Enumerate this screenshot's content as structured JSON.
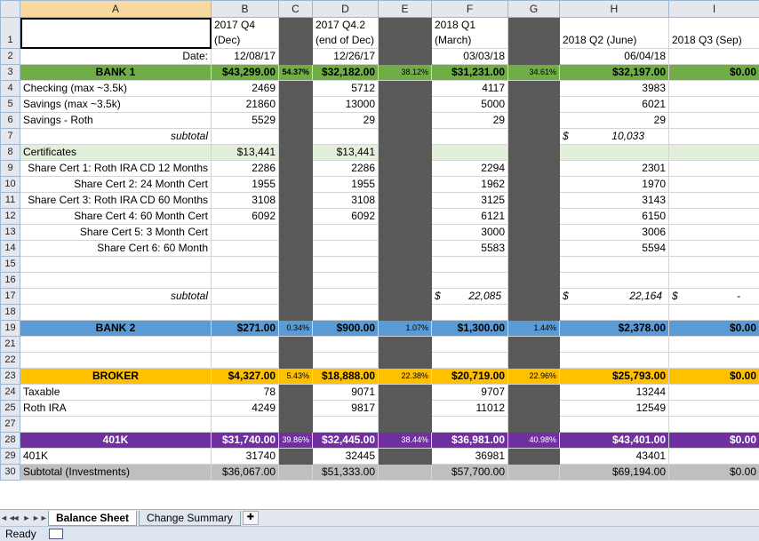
{
  "columns": [
    "A",
    "B",
    "C",
    "D",
    "E",
    "F",
    "G",
    "H",
    "I"
  ],
  "header_row": {
    "b": [
      "2017 Q4",
      "(Dec)"
    ],
    "d": [
      "2017 Q4.2",
      "(end of Dec)"
    ],
    "f": [
      "2018 Q1",
      "(March)"
    ],
    "h": [
      "",
      "2018 Q2 (June)"
    ],
    "i": [
      "",
      "2018 Q3 (Sep)"
    ]
  },
  "rows": {
    "r2": {
      "a": "Date:",
      "b": "12/08/17",
      "d": "12/26/17",
      "f": "03/03/18",
      "h": "06/04/18"
    },
    "r3": {
      "a": "BANK 1",
      "b": "$43,299.00",
      "c": "54.37%",
      "d": "$32,182.00",
      "e": "38.12%",
      "f": "$31,231.00",
      "g": "34.61%",
      "h": "$32,197.00",
      "i": "$0.00"
    },
    "r4": {
      "a": "Checking (max ~3.5k)",
      "b": "2469",
      "d": "5712",
      "f": "4117",
      "h": "3983"
    },
    "r5": {
      "a": "Savings (max ~3.5k)",
      "b": "21860",
      "d": "13000",
      "f": "5000",
      "h": "6021"
    },
    "r6": {
      "a": "Savings - Roth",
      "b": "5529",
      "d": "29",
      "f": "29",
      "h": "29"
    },
    "r7": {
      "a": "subtotal",
      "h_sym": "$",
      "h": "10,033"
    },
    "r8": {
      "a": "Certificates",
      "b": "$13,441",
      "d": "$13,441"
    },
    "r9": {
      "a": "Share Cert 1: Roth IRA CD 12 Months",
      "b": "2286",
      "d": "2286",
      "f": "2294",
      "h": "2301"
    },
    "r10": {
      "a": "Share Cert 2: 24 Month Cert",
      "b": "1955",
      "d": "1955",
      "f": "1962",
      "h": "1970"
    },
    "r11": {
      "a": "Share Cert 3: Roth IRA CD 60 Months",
      "b": "3108",
      "d": "3108",
      "f": "3125",
      "h": "3143"
    },
    "r12": {
      "a": "Share Cert 4: 60 Month Cert",
      "b": "6092",
      "d": "6092",
      "f": "6121",
      "h": "6150"
    },
    "r13": {
      "a": "Share Cert 5: 3 Month Cert",
      "f": "3000",
      "h": "3006"
    },
    "r14": {
      "a": "Share Cert 6: 60 Month",
      "f": "5583",
      "h": "5594"
    },
    "r17": {
      "a": "subtotal",
      "f_sym": "$",
      "f": "22,085",
      "h_sym": "$",
      "h": "22,164",
      "i_sym": "$",
      "i": "-"
    },
    "r19": {
      "a": "BANK 2",
      "b": "$271.00",
      "c": "0.34%",
      "d": "$900.00",
      "e": "1.07%",
      "f": "$1,300.00",
      "g": "1.44%",
      "h": "$2,378.00",
      "i": "$0.00"
    },
    "r23": {
      "a": "BROKER",
      "b": "$4,327.00",
      "c": "5.43%",
      "d": "$18,888.00",
      "e": "22.38%",
      "f": "$20,719.00",
      "g": "22.96%",
      "h": "$25,793.00",
      "i": "$0.00"
    },
    "r24": {
      "a": "Taxable",
      "b": "78",
      "d": "9071",
      "f": "9707",
      "h": "13244"
    },
    "r25": {
      "a": "Roth IRA",
      "b": "4249",
      "d": "9817",
      "f": "11012",
      "h": "12549"
    },
    "r28": {
      "a": "401K",
      "b": "$31,740.00",
      "c": "39.86%",
      "d": "$32,445.00",
      "e": "38.44%",
      "f": "$36,981.00",
      "g": "40.98%",
      "h": "$43,401.00",
      "i": "$0.00"
    },
    "r29": {
      "a": "401K",
      "b": "31740",
      "d": "32445",
      "f": "36981",
      "h": "43401"
    },
    "r30": {
      "a": "Subtotal (Investments)",
      "b": "$36,067.00",
      "d": "$51,333.00",
      "f": "$57,700.00",
      "h": "$69,194.00",
      "i": "$0.00"
    }
  },
  "row_numbers": [
    "1",
    "2",
    "3",
    "4",
    "5",
    "6",
    "7",
    "8",
    "9",
    "10",
    "11",
    "12",
    "13",
    "14",
    "15",
    "16",
    "17",
    "18",
    "19",
    "21",
    "22",
    "23",
    "24",
    "25",
    "27",
    "28",
    "29",
    "30"
  ],
  "tabs": {
    "nav": [
      "◄◄",
      "◄",
      "►",
      "►►"
    ],
    "sheet1": "Balance Sheet",
    "sheet2": "Change Summary"
  },
  "status": {
    "ready": "Ready"
  },
  "colors": {
    "bank1": "#70ad47",
    "bank2": "#5b9bd5",
    "broker": "#ffc000",
    "k401": "#7030a0",
    "dark_col": "#595959"
  }
}
